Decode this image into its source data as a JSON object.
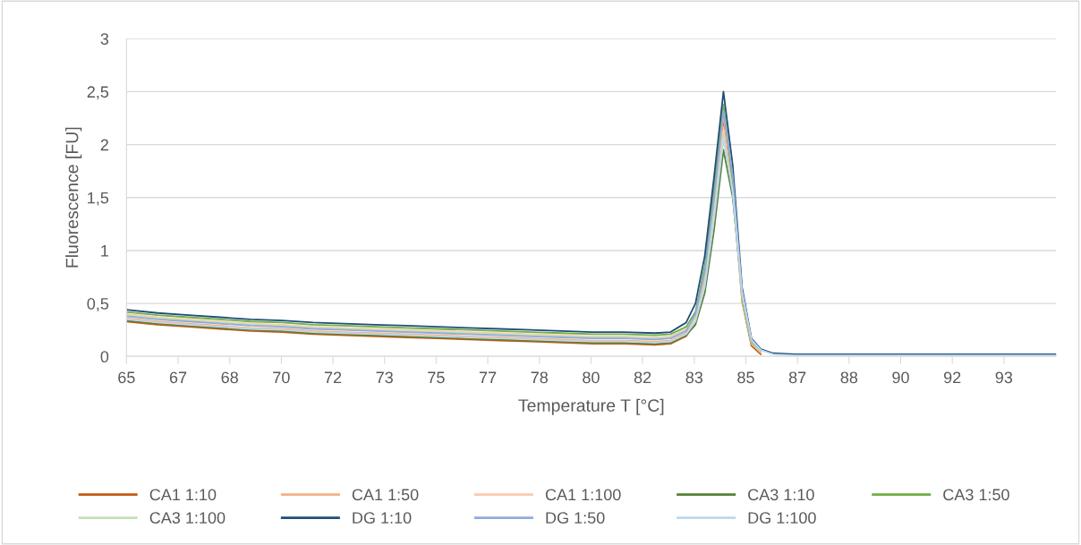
{
  "chart_data": {
    "type": "line",
    "xlabel": "Temperature T [°C]",
    "ylabel": "Fluorescence [FU]",
    "x": [
      65,
      66,
      67,
      68,
      69,
      70,
      71,
      72,
      73,
      74,
      75,
      76,
      77,
      78,
      79,
      80,
      81,
      82,
      82.5,
      83,
      83.3,
      83.6,
      83.9,
      84.2,
      84.5,
      84.8,
      85.1,
      85.4,
      85.8,
      86.5,
      88,
      90,
      92,
      94.9
    ],
    "xlim": [
      65,
      94.9
    ],
    "xticks": [
      {
        "value": 65,
        "label": "65"
      },
      {
        "value": 66.66,
        "label": "67"
      },
      {
        "value": 68.32,
        "label": "68"
      },
      {
        "value": 69.98,
        "label": "70"
      },
      {
        "value": 71.64,
        "label": "72"
      },
      {
        "value": 73.3,
        "label": "73"
      },
      {
        "value": 74.96,
        "label": "75"
      },
      {
        "value": 76.62,
        "label": "77"
      },
      {
        "value": 78.28,
        "label": "78"
      },
      {
        "value": 79.94,
        "label": "80"
      },
      {
        "value": 81.6,
        "label": "82"
      },
      {
        "value": 83.26,
        "label": "83"
      },
      {
        "value": 84.92,
        "label": "85"
      },
      {
        "value": 86.58,
        "label": "87"
      },
      {
        "value": 88.24,
        "label": "88"
      },
      {
        "value": 89.9,
        "label": "90"
      },
      {
        "value": 91.56,
        "label": "92"
      },
      {
        "value": 93.22,
        "label": "93"
      }
    ],
    "ylim": [
      0,
      3
    ],
    "yticks": [
      0,
      {
        "value": 0.5,
        "label": "0,5"
      },
      1,
      {
        "value": 1.5,
        "label": "1,5"
      },
      2,
      {
        "value": 2.5,
        "label": "2,5"
      },
      3
    ],
    "grid": "y",
    "legend": "bottom",
    "marker": "none",
    "line_style": "solid",
    "series": [
      {
        "name": "CA1 1:10",
        "color": "#c55a11",
        "values": [
          0.33,
          0.3,
          0.28,
          0.26,
          0.24,
          0.23,
          0.21,
          0.2,
          0.19,
          0.18,
          0.17,
          0.16,
          0.15,
          0.14,
          0.13,
          0.12,
          0.12,
          0.11,
          0.12,
          0.19,
          0.33,
          0.7,
          1.4,
          2.25,
          1.6,
          0.52,
          0.1,
          0.02,
          null,
          null,
          null,
          null,
          null,
          null
        ]
      },
      {
        "name": "CA1 1:50",
        "color": "#f4b183",
        "values": [
          0.36,
          0.33,
          0.31,
          0.29,
          0.27,
          0.26,
          0.24,
          0.23,
          0.22,
          0.21,
          0.2,
          0.19,
          0.18,
          0.17,
          0.16,
          0.15,
          0.15,
          0.14,
          0.15,
          0.22,
          0.38,
          0.75,
          1.48,
          2.28,
          1.62,
          0.55,
          0.13,
          0.04,
          null,
          null,
          null,
          null,
          null,
          null
        ]
      },
      {
        "name": "CA1 1:100",
        "color": "#f8cbad",
        "values": [
          0.4,
          0.37,
          0.35,
          0.33,
          0.31,
          0.3,
          0.28,
          0.27,
          0.26,
          0.25,
          0.24,
          0.23,
          0.22,
          0.21,
          0.2,
          0.19,
          0.19,
          0.18,
          0.19,
          0.26,
          0.36,
          0.7,
          1.4,
          2.15,
          1.52,
          0.53,
          0.12,
          0.04,
          null,
          null,
          null,
          null,
          null,
          null
        ]
      },
      {
        "name": "CA3 1:10",
        "color": "#548235",
        "values": [
          0.34,
          0.31,
          0.29,
          0.27,
          0.25,
          0.24,
          0.22,
          0.21,
          0.2,
          0.19,
          0.18,
          0.17,
          0.16,
          0.15,
          0.14,
          0.13,
          0.13,
          0.12,
          0.13,
          0.2,
          0.3,
          0.6,
          1.2,
          1.95,
          1.5,
          0.6,
          0.15,
          0.05,
          null,
          null,
          null,
          null,
          null,
          null
        ]
      },
      {
        "name": "CA3 1:50",
        "color": "#70ad47",
        "values": [
          0.42,
          0.39,
          0.37,
          0.35,
          0.33,
          0.32,
          0.3,
          0.29,
          0.28,
          0.27,
          0.26,
          0.25,
          0.24,
          0.23,
          0.22,
          0.21,
          0.21,
          0.2,
          0.21,
          0.28,
          0.42,
          0.85,
          1.6,
          2.38,
          1.65,
          0.55,
          0.13,
          0.05,
          null,
          null,
          null,
          null,
          null,
          null
        ]
      },
      {
        "name": "CA3 1:100",
        "color": "#c5e0b4",
        "values": [
          0.39,
          0.36,
          0.34,
          0.32,
          0.3,
          0.29,
          0.27,
          0.26,
          0.25,
          0.24,
          0.23,
          0.22,
          0.21,
          0.2,
          0.19,
          0.18,
          0.18,
          0.17,
          0.18,
          0.25,
          0.34,
          0.68,
          1.35,
          2.1,
          1.55,
          0.58,
          0.14,
          0.05,
          null,
          null,
          null,
          null,
          null,
          null
        ]
      },
      {
        "name": "DG 1:10",
        "color": "#1f4e79",
        "values": [
          0.44,
          0.41,
          0.39,
          0.37,
          0.35,
          0.34,
          0.32,
          0.31,
          0.3,
          0.29,
          0.28,
          0.27,
          0.26,
          0.25,
          0.24,
          0.23,
          0.23,
          0.22,
          0.23,
          0.32,
          0.5,
          0.95,
          1.7,
          2.5,
          1.8,
          0.65,
          0.17,
          0.07,
          0.03,
          0.02,
          0.02,
          0.02,
          0.02,
          0.02
        ]
      },
      {
        "name": "DG 1:50",
        "color": "#8faadc",
        "values": [
          0.38,
          0.35,
          0.33,
          0.31,
          0.29,
          0.28,
          0.26,
          0.25,
          0.24,
          0.23,
          0.22,
          0.21,
          0.2,
          0.19,
          0.18,
          0.17,
          0.17,
          0.16,
          0.17,
          0.24,
          0.4,
          0.8,
          1.5,
          2.32,
          1.7,
          0.62,
          0.15,
          0.06,
          null,
          null,
          null,
          null,
          null,
          null
        ]
      },
      {
        "name": "DG 1:100",
        "color": "#bdd7ee",
        "values": [
          0.35,
          0.32,
          0.3,
          0.28,
          0.26,
          0.25,
          0.23,
          0.22,
          0.21,
          0.2,
          0.19,
          0.18,
          0.17,
          0.16,
          0.15,
          0.14,
          0.14,
          0.13,
          0.14,
          0.21,
          0.33,
          0.66,
          1.3,
          2.05,
          1.55,
          0.6,
          0.16,
          0.06,
          0.02,
          0.01,
          0.01,
          0.01,
          0.01,
          0.01
        ]
      }
    ]
  }
}
